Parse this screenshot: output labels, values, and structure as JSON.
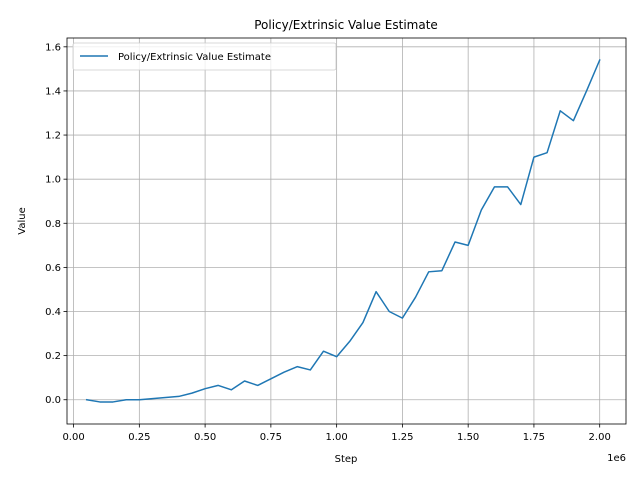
{
  "chart_data": {
    "type": "line",
    "title": "Policy/Extrinsic Value Estimate",
    "xlabel": "Step",
    "ylabel": "Value",
    "x_offset_label": "1e6",
    "x_scale": 1000000,
    "xlim": [
      -25000,
      2100000
    ],
    "ylim": [
      -0.11,
      1.64
    ],
    "x_ticks": [
      0,
      250000,
      500000,
      750000,
      1000000,
      1250000,
      1500000,
      1750000,
      2000000
    ],
    "x_tick_labels": [
      "0.00",
      "0.25",
      "0.50",
      "0.75",
      "1.00",
      "1.25",
      "1.50",
      "1.75",
      "2.00"
    ],
    "y_ticks": [
      0.0,
      0.2,
      0.4,
      0.6,
      0.8,
      1.0,
      1.2,
      1.4,
      1.6
    ],
    "y_tick_labels": [
      "0.0",
      "0.2",
      "0.4",
      "0.6",
      "0.8",
      "1.0",
      "1.2",
      "1.4",
      "1.6"
    ],
    "grid": true,
    "legend": "top-left",
    "colors": {
      "series": "#1f77b4",
      "grid": "#b0b0b0",
      "axes": "#000000"
    },
    "series": [
      {
        "name": "Policy/Extrinsic Value Estimate",
        "x": [
          50000,
          100000,
          150000,
          200000,
          250000,
          300000,
          350000,
          400000,
          450000,
          500000,
          550000,
          600000,
          650000,
          700000,
          750000,
          800000,
          850000,
          900000,
          950000,
          1000000,
          1050000,
          1100000,
          1150000,
          1200000,
          1250000,
          1300000,
          1350000,
          1400000,
          1450000,
          1500000,
          1550000,
          1600000,
          1650000,
          1700000,
          1750000,
          1800000,
          1850000,
          1900000,
          1950000,
          2000000
        ],
        "values": [
          0.0,
          -0.01,
          -0.01,
          0.0,
          0.0,
          0.005,
          0.01,
          0.015,
          0.03,
          0.05,
          0.065,
          0.045,
          0.085,
          0.065,
          0.095,
          0.125,
          0.15,
          0.135,
          0.22,
          0.195,
          0.265,
          0.35,
          0.49,
          0.4,
          0.37,
          0.465,
          0.58,
          0.585,
          0.715,
          0.7,
          0.86,
          0.965,
          0.965,
          0.885,
          1.1,
          1.12,
          1.31,
          1.265,
          1.4,
          1.54
        ]
      }
    ]
  }
}
